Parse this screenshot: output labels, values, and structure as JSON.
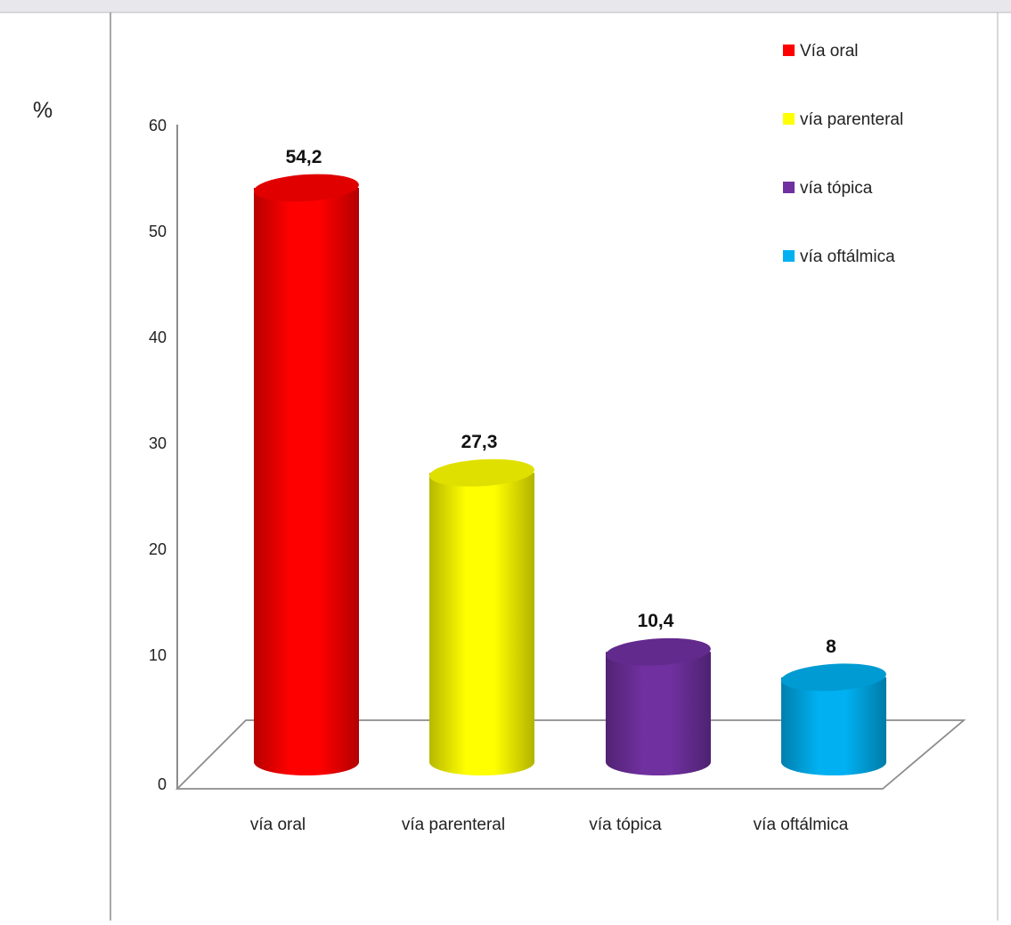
{
  "chart_data": {
    "type": "bar",
    "title": "",
    "xlabel": "",
    "ylabel": "%",
    "ylim": [
      0,
      60
    ],
    "yticks": [
      "0",
      "10",
      "20",
      "30",
      "40",
      "50",
      "60"
    ],
    "grid": false,
    "legend_position": "top-right",
    "three_d": true,
    "bar_shape": "cylinder",
    "categories": [
      "vía oral",
      "vía parenteral",
      "vía tópica",
      "vía oftálmica"
    ],
    "values": [
      54.2,
      27.3,
      10.4,
      8
    ],
    "data_labels": [
      "54,2",
      "27,3",
      "10,4",
      "8"
    ],
    "colors": [
      "#ff0000",
      "#ffff00",
      "#7030a0",
      "#00b0f0"
    ],
    "legend": [
      "Vía oral",
      "vía parenteral",
      "vía tópica",
      "vía oftálmica"
    ]
  }
}
